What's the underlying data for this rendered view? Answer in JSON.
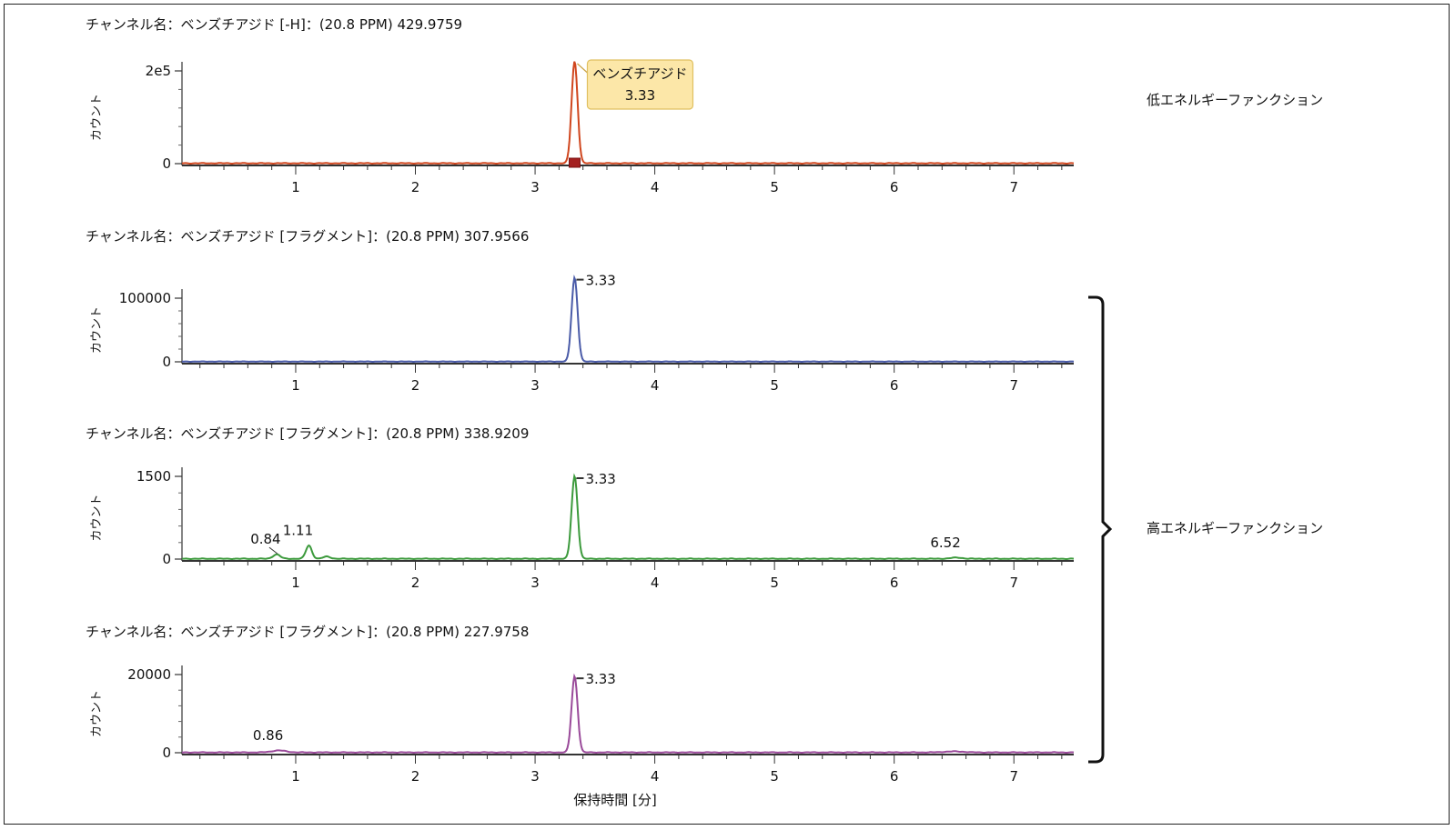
{
  "x_axis_label": "保持時間 [分]",
  "side_labels": {
    "low": "低エネルギーファンクション",
    "high": "高エネルギーファンクション"
  },
  "chart_data": [
    {
      "type": "line",
      "title": "チャンネル名：ベンズチアジド [-H]：(20.8 PPM) 429.9759",
      "ylabel": "カウント",
      "color": "#d0461e",
      "xlim": [
        0.05,
        7.5
      ],
      "ylim": [
        0,
        200000
      ],
      "ytick_values": [
        0,
        200000
      ],
      "ytick_labels": [
        "0",
        "2e5"
      ],
      "xticks": [
        1,
        2,
        3,
        4,
        5,
        6,
        7
      ],
      "peaks": [
        {
          "rt": 3.33,
          "height": 220000,
          "width": 0.025
        }
      ],
      "peak_labels": [],
      "callout": {
        "rt": 3.33,
        "name": "ベンズチアジド",
        "value": "3.33"
      }
    },
    {
      "type": "line",
      "title": "チャンネル名：ベンズチアジド [フラグメント]：(20.8 PPM) 307.9566",
      "ylabel": "カウント",
      "color": "#4a5ba8",
      "xlim": [
        0.05,
        7.5
      ],
      "ylim": [
        0,
        100000
      ],
      "ytick_values": [
        0,
        100000
      ],
      "ytick_labels": [
        "0",
        "100000"
      ],
      "xticks": [
        1,
        2,
        3,
        4,
        5,
        6,
        7
      ],
      "peaks": [
        {
          "rt": 3.33,
          "height": 132000,
          "width": 0.025
        }
      ],
      "peak_labels": [
        {
          "rt": 3.33,
          "text": "3.33"
        }
      ]
    },
    {
      "type": "line",
      "title": "チャンネル名：ベンズチアジド [フラグメント]：(20.8 PPM) 338.9209",
      "ylabel": "カウント",
      "color": "#3c9a3c",
      "xlim": [
        0.05,
        7.5
      ],
      "ylim": [
        0,
        1500
      ],
      "ytick_values": [
        0,
        1500
      ],
      "ytick_labels": [
        "0",
        "1500"
      ],
      "xticks": [
        1,
        2,
        3,
        4,
        5,
        6,
        7
      ],
      "peaks": [
        {
          "rt": 0.84,
          "height": 80,
          "width": 0.03
        },
        {
          "rt": 1.11,
          "height": 240,
          "width": 0.025
        },
        {
          "rt": 1.26,
          "height": 40,
          "width": 0.03
        },
        {
          "rt": 3.33,
          "height": 1500,
          "width": 0.025
        },
        {
          "rt": 6.52,
          "height": 20,
          "width": 0.05
        }
      ],
      "peak_labels": [
        {
          "rt": 0.84,
          "text": "0.84"
        },
        {
          "rt": 1.11,
          "text": "1.11"
        },
        {
          "rt": 3.33,
          "text": "3.33"
        },
        {
          "rt": 6.52,
          "text": "6.52"
        }
      ]
    },
    {
      "type": "line",
      "title": "チャンネル名：ベンズチアジド [フラグメント]：(20.8 PPM) 227.9758",
      "ylabel": "カウント",
      "color": "#9a4a9a",
      "xlim": [
        0.05,
        7.5
      ],
      "ylim": [
        0,
        20000
      ],
      "ytick_values": [
        0,
        20000
      ],
      "ytick_labels": [
        "0",
        "20000"
      ],
      "xticks": [
        1,
        2,
        3,
        4,
        5,
        6,
        7
      ],
      "peaks": [
        {
          "rt": 0.86,
          "height": 500,
          "width": 0.06
        },
        {
          "rt": 3.33,
          "height": 19500,
          "width": 0.025
        },
        {
          "rt": 6.5,
          "height": 250,
          "width": 0.08
        }
      ],
      "peak_labels": [
        {
          "rt": 0.86,
          "text": "0.86"
        },
        {
          "rt": 3.33,
          "text": "3.33"
        }
      ]
    }
  ]
}
